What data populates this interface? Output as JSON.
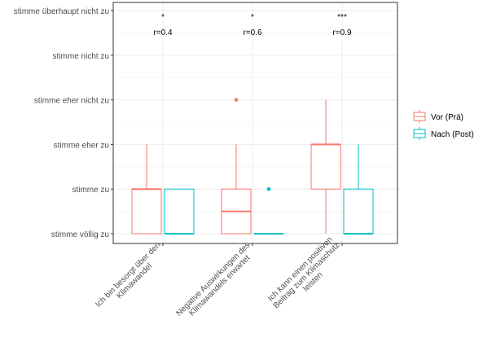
{
  "chart_data": {
    "type": "box",
    "y_categories": [
      "stimme völlig zu",
      "stimme zu",
      "stimme eher zu",
      "stimme eher nicht zu",
      "stimme nicht zu",
      "stimme überhaupt nicht zu"
    ],
    "categories": [
      "Ich bin besorgt über den Klimawandel",
      "Negative Auswirkungen des Klimawandels erwartet",
      "Ich kann einen positiven Beitrag zum Klimaschutz leisten"
    ],
    "category_lines": [
      [
        "Ich bin besorgt über den",
        "Klimawandel"
      ],
      [
        "Negative Auswirkungen des",
        "Klimawandels erwartet"
      ],
      [
        "Ich kann einen positiven",
        "Beitrag zum Klimaschutz",
        "leisten"
      ]
    ],
    "series": [
      {
        "name": "Vor (Prä)",
        "color": "#F8766D",
        "boxes": [
          {
            "min": 1,
            "q1": 1,
            "median": 2,
            "q3": 2,
            "max": 3,
            "outliers": []
          },
          {
            "min": 1,
            "q1": 1,
            "median": 1.5,
            "q3": 2,
            "max": 3,
            "outliers": [
              4
            ]
          },
          {
            "min": 1,
            "q1": 2,
            "median": 3,
            "q3": 3,
            "max": 4,
            "outliers": []
          }
        ]
      },
      {
        "name": "Nach (Post)",
        "color": "#00BFC4",
        "boxes": [
          {
            "min": 1,
            "q1": 1,
            "median": 1,
            "q3": 2,
            "max": 2,
            "outliers": []
          },
          {
            "min": 1,
            "q1": 1,
            "median": 1,
            "q3": 1,
            "max": 1,
            "outliers": [
              2
            ]
          },
          {
            "min": 1,
            "q1": 1,
            "median": 1,
            "q3": 2,
            "max": 3,
            "outliers": []
          }
        ]
      }
    ],
    "annotations": [
      {
        "stars": "*",
        "effect": "r=0.4"
      },
      {
        "stars": "*",
        "effect": "r=0.6"
      },
      {
        "stars": "***",
        "effect": "r=0.9"
      }
    ],
    "ylim": [
      0.8,
      6.2
    ],
    "grid": true,
    "legend_position": "right"
  }
}
